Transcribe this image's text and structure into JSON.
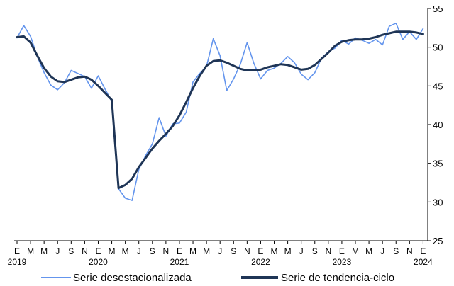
{
  "chart_data": {
    "type": "line",
    "x_start": "2019-01",
    "y_axis": {
      "position": "right",
      "ylim": [
        25,
        55
      ],
      "ticks": [
        25,
        30,
        35,
        40,
        45,
        50,
        55
      ]
    },
    "month_ticks": [
      "E",
      "M",
      "M",
      "J",
      "S",
      "N",
      "E",
      "M",
      "M",
      "J",
      "S",
      "N",
      "E",
      "M",
      "M",
      "J",
      "S",
      "N",
      "E",
      "M",
      "M",
      "J",
      "S",
      "N",
      "E",
      "M",
      "M",
      "J",
      "S",
      "N",
      "E"
    ],
    "year_ticks": [
      {
        "label": "2019",
        "month_index": 0
      },
      {
        "label": "2020",
        "month_index": 12
      },
      {
        "label": "2021",
        "month_index": 24
      },
      {
        "label": "2022",
        "month_index": 36
      },
      {
        "label": "2023",
        "month_index": 48
      },
      {
        "label": "2024",
        "month_index": 60
      }
    ],
    "grid": false,
    "legend_position": "bottom",
    "series": [
      {
        "name": "Serie desestacionalizada",
        "color": "#6495ed",
        "values": [
          51.2,
          52.8,
          51.4,
          48.8,
          46.7,
          45.1,
          44.5,
          45.4,
          47.0,
          46.6,
          46.2,
          44.7,
          46.3,
          44.6,
          43.0,
          31.7,
          30.5,
          30.2,
          34.2,
          36.0,
          37.5,
          40.9,
          38.5,
          40.1,
          40.2,
          41.6,
          45.5,
          46.6,
          47.5,
          51.1,
          48.9,
          44.4,
          45.9,
          47.8,
          50.6,
          47.9,
          45.9,
          47.0,
          47.3,
          47.9,
          48.8,
          48.0,
          46.5,
          45.8,
          46.7,
          48.6,
          49.4,
          49.9,
          50.9,
          50.4,
          51.2,
          50.9,
          50.5,
          51.0,
          50.3,
          52.7,
          53.1,
          51.0,
          52.0,
          51.0,
          52.4
        ]
      },
      {
        "name": "Serie de tendencia-ciclo",
        "color": "#1f3556",
        "values": [
          51.3,
          51.4,
          50.6,
          48.9,
          47.3,
          46.2,
          45.6,
          45.5,
          45.8,
          46.1,
          46.2,
          45.8,
          45.0,
          44.1,
          43.2,
          31.8,
          32.2,
          33.0,
          34.5,
          35.7,
          36.9,
          37.9,
          38.8,
          39.8,
          41.2,
          42.9,
          44.7,
          46.3,
          47.6,
          48.2,
          48.3,
          48.0,
          47.6,
          47.2,
          47.0,
          47.0,
          47.1,
          47.4,
          47.6,
          47.8,
          47.7,
          47.4,
          47.1,
          47.2,
          47.7,
          48.5,
          49.3,
          50.2,
          50.7,
          50.9,
          51.0,
          51.0,
          51.1,
          51.3,
          51.6,
          51.8,
          52.0,
          52.0,
          52.0,
          51.9,
          51.7
        ]
      }
    ]
  }
}
